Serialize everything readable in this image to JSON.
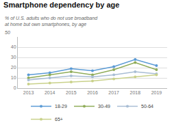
{
  "chart_data": {
    "type": "line",
    "title": "Smartphone dependency by age",
    "subtitle": "% of U.S. adults who do not use broadband at home but own smartphones, by age",
    "annotations": [
      "50"
    ],
    "x": [
      2013,
      2014,
      2015,
      2016,
      2017,
      2018,
      2019
    ],
    "series": [
      {
        "name": "18-29",
        "color": "#5b9bd5",
        "values": [
          13,
          15,
          19,
          17,
          21,
          28,
          22
        ]
      },
      {
        "name": "30-49",
        "color": "#8fac58",
        "values": [
          10,
          13,
          16,
          13,
          18,
          25,
          18
        ]
      },
      {
        "name": "50-64",
        "color": "#a8bdd4",
        "values": [
          8,
          10,
          12,
          11,
          13,
          16,
          14
        ]
      },
      {
        "name": "65+",
        "color": "#c9d18a",
        "values": [
          4,
          5,
          6,
          7,
          9,
          11,
          13
        ]
      }
    ],
    "xlim": [
      2012.5,
      2019.5
    ],
    "xticks": [
      2013,
      2014,
      2015,
      2016,
      2017,
      2018,
      2019
    ],
    "ylim": [
      0,
      50
    ],
    "yticks": [
      0,
      10,
      20,
      30,
      40
    ],
    "grid": true,
    "legend": "bottom",
    "marker": "o"
  }
}
